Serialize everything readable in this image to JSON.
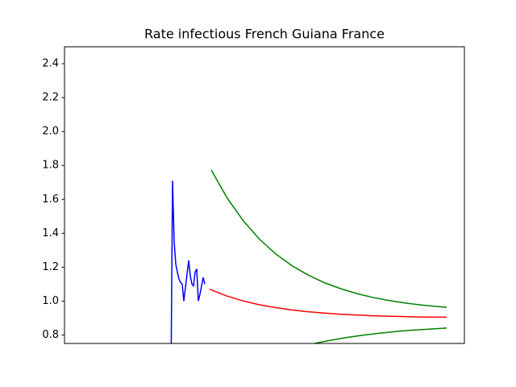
{
  "chart_data": {
    "type": "line",
    "title": "Rate infectious French Guiana France",
    "xlim": [
      0,
      248
    ],
    "ylim": [
      0.75,
      2.5
    ],
    "yticks": [
      0.8,
      {
        "value": 1.0,
        "label": "1.0"
      },
      1.2,
      1.4,
      1.6,
      1.8,
      {
        "value": 2.0,
        "label": "2.0"
      },
      2.2,
      2.4
    ],
    "series": [
      {
        "color": "#0000ff",
        "x": [
          66,
          67,
          68,
          69,
          70,
          71,
          72,
          73,
          74,
          75,
          77,
          78,
          79,
          80,
          81,
          82,
          83,
          84,
          85,
          86,
          87
        ],
        "values": [
          0.5,
          1.71,
          1.35,
          1.22,
          1.17,
          1.13,
          1.11,
          1.1,
          1.0,
          1.08,
          1.24,
          1.15,
          1.1,
          1.09,
          1.17,
          1.19,
          1.0,
          1.04,
          1.09,
          1.14,
          1.1
        ]
      },
      {
        "color": "#ff0000",
        "x": [
          90,
          100,
          110,
          120,
          130,
          140,
          150,
          160,
          170,
          180,
          190,
          200,
          210,
          220,
          230,
          237
        ],
        "values": [
          1.07,
          1.032,
          1.003,
          0.98,
          0.963,
          0.949,
          0.938,
          0.93,
          0.923,
          0.918,
          0.914,
          0.911,
          0.9085,
          0.9066,
          0.905,
          0.905
        ]
      },
      {
        "color": "#008000",
        "x": [
          91,
          101,
          111,
          121,
          131,
          141,
          151,
          161,
          171,
          181,
          191,
          201,
          211,
          221,
          231,
          237
        ],
        "values": [
          1.773,
          1.606,
          1.472,
          1.364,
          1.278,
          1.209,
          1.154,
          1.109,
          1.074,
          1.045,
          1.022,
          1.004,
          0.989,
          0.977,
          0.968,
          0.963
        ]
      },
      {
        "color": "#008000",
        "x": [
          145,
          155,
          165,
          175,
          185,
          195,
          205,
          215,
          225,
          237
        ],
        "values": [
          0.727,
          0.75,
          0.769,
          0.785,
          0.799,
          0.81,
          0.82,
          0.828,
          0.834,
          0.841
        ]
      }
    ]
  }
}
